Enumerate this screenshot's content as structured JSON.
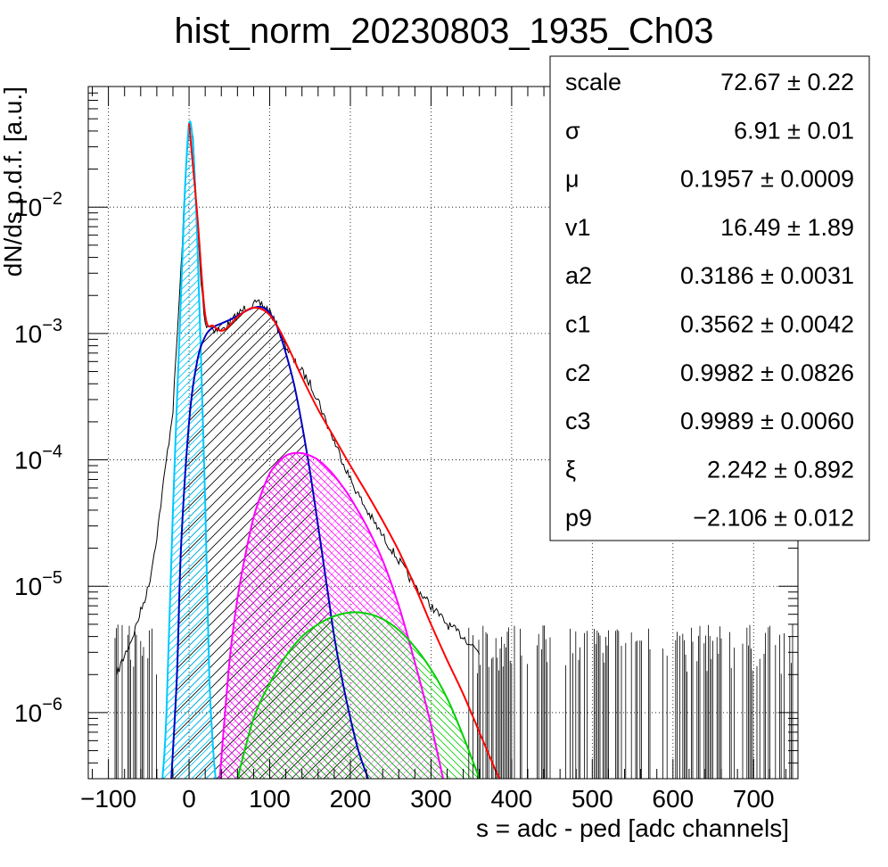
{
  "chart_data": {
    "type": "line",
    "title": "hist_norm_20230803_1935_Ch03",
    "xlabel": "s = adc - ped [adc channels]",
    "ylabel": "dN/ds p.d.f. [a.u.]",
    "xlim": [
      -125,
      755
    ],
    "ylim": [
      3e-07,
      0.09
    ],
    "yscale": "log",
    "grid": true,
    "x_ticks": [
      -100,
      0,
      100,
      200,
      300,
      400,
      500,
      600,
      700
    ],
    "x_tick_labels": [
      "−100",
      "0",
      "100",
      "200",
      "300",
      "400",
      "500",
      "600",
      "700"
    ],
    "y_ticks": [
      {
        "value": 1e-06,
        "base": "10",
        "exp": "−6"
      },
      {
        "value": 1e-05,
        "base": "10",
        "exp": "−5"
      },
      {
        "value": 0.0001,
        "base": "10",
        "exp": "−4"
      },
      {
        "value": 0.001,
        "base": "10",
        "exp": "−3"
      },
      {
        "value": 0.01,
        "base": "10",
        "exp": "−2"
      }
    ],
    "series": [
      {
        "color": "#000000",
        "kind": "histogram",
        "x": [
          -90,
          -70,
          -50,
          -40,
          -30,
          -20,
          -10,
          -5,
          0,
          5,
          10,
          15,
          20,
          30,
          40,
          50,
          60,
          70,
          80,
          90,
          100,
          110,
          120,
          130,
          140,
          150,
          160,
          170,
          180,
          190,
          200,
          220,
          240,
          260,
          280,
          300,
          320,
          340,
          360
        ],
        "values": [
          2e-06,
          4e-06,
          1e-05,
          2.5e-05,
          8e-05,
          0.00025,
          0.0032,
          0.015,
          0.046,
          0.035,
          0.008,
          0.0025,
          0.0012,
          0.0011,
          0.00105,
          0.0012,
          0.0014,
          0.0016,
          0.0017,
          0.0017,
          0.0015,
          0.0011,
          0.0008,
          0.0006,
          0.0005,
          0.0004,
          0.0003,
          0.0002,
          0.00014,
          0.0001,
          7e-05,
          4e-05,
          2.5e-05,
          1.6e-05,
          1e-05,
          7e-06,
          5e-06,
          4e-06,
          3e-06
        ]
      },
      {
        "color": "#ff0000",
        "kind": "total-fit",
        "x": [
          0,
          10,
          20,
          30,
          40,
          50,
          60,
          80,
          100,
          120,
          140,
          160,
          180,
          200,
          220,
          240,
          260,
          280,
          300,
          320,
          340,
          360,
          380,
          385
        ],
        "values": [
          0.046,
          0.009,
          0.0014,
          0.00115,
          0.00105,
          0.00115,
          0.00135,
          0.0016,
          0.0014,
          0.00085,
          0.00045,
          0.00025,
          0.00015,
          9e-05,
          5.5e-05,
          3.3e-05,
          1.9e-05,
          1e-05,
          5e-06,
          2.6e-06,
          1.4e-06,
          7e-07,
          3.5e-07,
          3e-07
        ]
      },
      {
        "color": "#00c8ff",
        "kind": "pedestal",
        "x": [
          -33,
          -28,
          -20,
          -10,
          -5,
          0,
          5,
          10,
          15,
          20,
          25,
          30,
          33
        ],
        "values": [
          3e-07,
          1e-06,
          4e-05,
          0.002,
          0.014,
          0.046,
          0.03,
          0.006,
          0.0006,
          4.5e-05,
          2e-06,
          5e-07,
          3e-07
        ]
      },
      {
        "color": "#0000c0",
        "kind": "single-pe",
        "x": [
          -22,
          -15,
          -10,
          0,
          10,
          20,
          30,
          40,
          50,
          60,
          70,
          80,
          90,
          100,
          110,
          120,
          130,
          140,
          150,
          160,
          170,
          180,
          190,
          200,
          210,
          222
        ],
        "values": [
          3e-07,
          2e-06,
          2e-05,
          0.0002,
          0.0006,
          0.00095,
          0.00112,
          0.0012,
          0.00128,
          0.00138,
          0.0015,
          0.0016,
          0.00162,
          0.00145,
          0.0011,
          0.0007,
          0.0004,
          0.00019,
          8e-05,
          3e-05,
          1.1e-05,
          4e-06,
          1.8e-06,
          9e-07,
          5e-07,
          3e-07
        ]
      },
      {
        "color": "#ff00ff",
        "kind": "two-pe",
        "x": [
          38,
          50,
          60,
          70,
          80,
          90,
          100,
          110,
          120,
          130,
          140,
          150,
          160,
          170,
          180,
          190,
          200,
          220,
          240,
          260,
          280,
          300,
          315
        ],
        "values": [
          3e-07,
          2.5e-06,
          8e-06,
          1.8e-05,
          3.5e-05,
          5.5e-05,
          7.8e-05,
          9.5e-05,
          0.000108,
          0.000113,
          0.000113,
          0.000108,
          0.0001,
          8.8e-05,
          7.5e-05,
          6.2e-05,
          5e-05,
          3e-05,
          1.6e-05,
          7e-06,
          2.5e-06,
          8e-07,
          3e-07
        ]
      },
      {
        "color": "#00d000",
        "kind": "three-pe",
        "x": [
          60,
          80,
          100,
          120,
          140,
          160,
          180,
          200,
          220,
          240,
          260,
          280,
          300,
          320,
          340,
          360
        ],
        "values": [
          3e-07,
          9e-07,
          1.7e-06,
          2.8e-06,
          4e-06,
          5e-06,
          5.8e-06,
          6.2e-06,
          6.1e-06,
          5.5e-06,
          4.5e-06,
          3.3e-06,
          2.2e-06,
          1.3e-06,
          6.5e-07,
          3e-07
        ]
      }
    ],
    "stats": [
      {
        "name": "scale",
        "value": "72.67 ± 0.22"
      },
      {
        "name": "σ",
        "value": "6.91 ± 0.01"
      },
      {
        "name": "μ",
        "value": "0.1957 ± 0.0009"
      },
      {
        "name": "v1",
        "value": "16.49 ± 1.89"
      },
      {
        "name": "a2",
        "value": "0.3186 ± 0.0031"
      },
      {
        "name": "c1",
        "value": "0.3562 ± 0.0042"
      },
      {
        "name": "c2",
        "value": "0.9982 ± 0.0826"
      },
      {
        "name": "c3",
        "value": "0.9989 ± 0.0060"
      },
      {
        "name": "ξ",
        "value": "2.242 ± 0.892"
      },
      {
        "name": "p9",
        "value": "−2.106 ± 0.012"
      }
    ]
  }
}
